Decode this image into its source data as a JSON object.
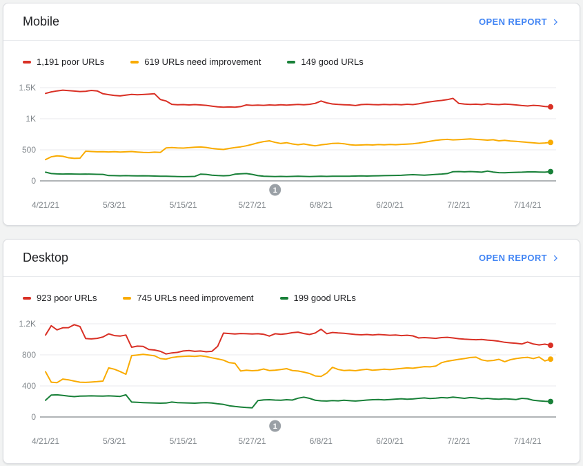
{
  "colors": {
    "poor": "#d93025",
    "needs_improvement": "#f9ab00",
    "good": "#188038",
    "link": "#4285f4",
    "axis_label": "#80868b",
    "gridline": "#e8eaed",
    "axis_line": "#80868b",
    "annotation_badge": "#9aa0a6",
    "card_title": "#202124"
  },
  "cards": [
    {
      "title": "Mobile",
      "open_report_label": "OPEN REPORT",
      "legend": [
        {
          "label": "1,191 poor URLs",
          "color": "#d93025"
        },
        {
          "label": "619 URLs need improvement",
          "color": "#f9ab00"
        },
        {
          "label": "149 good URLs",
          "color": "#188038"
        }
      ]
    },
    {
      "title": "Desktop",
      "open_report_label": "OPEN REPORT",
      "legend": [
        {
          "label": "923 poor URLs",
          "color": "#d93025"
        },
        {
          "label": "745 URLs need improvement",
          "color": "#f9ab00"
        },
        {
          "label": "199 good URLs",
          "color": "#188038"
        }
      ]
    }
  ],
  "chart_data": [
    {
      "type": "line",
      "device": "Mobile",
      "ylim": [
        0,
        1500
      ],
      "y_tick_labels": [
        "1.5K",
        "1K",
        "500",
        "0"
      ],
      "x_tick_labels": [
        "4/21/21",
        "5/3/21",
        "5/15/21",
        "5/27/21",
        "6/8/21",
        "6/20/21",
        "7/2/21",
        "7/14/21"
      ],
      "x_tick_days": [
        0,
        12,
        24,
        36,
        48,
        60,
        72,
        84
      ],
      "total_days": 88,
      "grid": true,
      "legend_position": "top",
      "annotation": {
        "label": "1",
        "day": 40
      },
      "series": [
        {
          "name": "poor URLs",
          "current": 1191,
          "color": "#d93025",
          "values": [
            1408,
            1432,
            1448,
            1460,
            1452,
            1445,
            1438,
            1442,
            1456,
            1448,
            1402,
            1388,
            1375,
            1368,
            1380,
            1392,
            1385,
            1390,
            1395,
            1402,
            1310,
            1285,
            1232,
            1225,
            1228,
            1222,
            1228,
            1222,
            1215,
            1202,
            1192,
            1185,
            1190,
            1186,
            1196,
            1222,
            1215,
            1220,
            1216,
            1222,
            1218,
            1224,
            1220,
            1226,
            1230,
            1226,
            1232,
            1248,
            1285,
            1255,
            1238,
            1230,
            1226,
            1222,
            1212,
            1228,
            1232,
            1228,
            1226,
            1230,
            1227,
            1231,
            1226,
            1233,
            1228,
            1240,
            1258,
            1272,
            1284,
            1295,
            1308,
            1328,
            1248,
            1236,
            1230,
            1234,
            1228,
            1240,
            1232,
            1228,
            1236,
            1230,
            1222,
            1212,
            1205,
            1215,
            1210,
            1198,
            1191
          ]
        },
        {
          "name": "URLs need improvement",
          "current": 619,
          "color": "#f9ab00",
          "values": [
            342,
            388,
            402,
            396,
            372,
            362,
            366,
            478,
            472,
            468,
            470,
            466,
            470,
            465,
            468,
            472,
            465,
            458,
            455,
            462,
            458,
            530,
            535,
            530,
            528,
            534,
            542,
            546,
            538,
            522,
            512,
            506,
            522,
            535,
            548,
            565,
            588,
            612,
            632,
            645,
            620,
            602,
            615,
            595,
            582,
            595,
            578,
            565,
            580,
            590,
            602,
            606,
            598,
            582,
            574,
            578,
            582,
            578,
            584,
            580,
            586,
            582,
            588,
            592,
            598,
            608,
            622,
            638,
            652,
            662,
            668,
            660,
            664,
            670,
            674,
            668,
            662,
            656,
            662,
            645,
            652,
            642,
            635,
            628,
            620,
            612,
            605,
            610,
            619
          ]
        },
        {
          "name": "good URLs",
          "current": 149,
          "color": "#188038",
          "values": [
            140,
            118,
            112,
            110,
            112,
            110,
            108,
            110,
            108,
            106,
            104,
            86,
            84,
            82,
            84,
            82,
            80,
            82,
            80,
            78,
            76,
            74,
            72,
            70,
            68,
            70,
            72,
            108,
            104,
            92,
            86,
            82,
            86,
            108,
            114,
            118,
            104,
            84,
            76,
            72,
            70,
            72,
            70,
            72,
            74,
            72,
            70,
            72,
            74,
            72,
            74,
            76,
            74,
            76,
            78,
            80,
            78,
            80,
            82,
            84,
            86,
            88,
            90,
            95,
            100,
            95,
            92,
            98,
            104,
            110,
            118,
            148,
            150,
            146,
            150,
            145,
            140,
            158,
            142,
            132,
            130,
            134,
            138,
            140,
            144,
            146,
            142,
            140,
            149
          ]
        }
      ]
    },
    {
      "type": "line",
      "device": "Desktop",
      "ylim": [
        0,
        1200
      ],
      "y_tick_labels": [
        "1.2K",
        "800",
        "400",
        "0"
      ],
      "x_tick_labels": [
        "4/21/21",
        "5/3/21",
        "5/15/21",
        "5/27/21",
        "6/8/21",
        "6/20/21",
        "7/2/21",
        "7/14/21"
      ],
      "x_tick_days": [
        0,
        12,
        24,
        36,
        48,
        60,
        72,
        84
      ],
      "total_days": 88,
      "grid": true,
      "legend_position": "top",
      "annotation": {
        "label": "1",
        "day": 40
      },
      "series": [
        {
          "name": "poor URLs",
          "current": 923,
          "color": "#d93025",
          "values": [
            1055,
            1175,
            1122,
            1148,
            1150,
            1188,
            1165,
            1010,
            1005,
            1012,
            1030,
            1070,
            1048,
            1042,
            1055,
            898,
            912,
            908,
            868,
            862,
            845,
            812,
            825,
            832,
            850,
            855,
            845,
            850,
            840,
            845,
            910,
            1080,
            1075,
            1068,
            1075,
            1072,
            1068,
            1072,
            1065,
            1042,
            1072,
            1065,
            1072,
            1085,
            1092,
            1075,
            1062,
            1082,
            1130,
            1072,
            1088,
            1082,
            1078,
            1070,
            1062,
            1058,
            1062,
            1055,
            1062,
            1058,
            1052,
            1056,
            1048,
            1052,
            1044,
            1018,
            1022,
            1018,
            1012,
            1022,
            1026,
            1018,
            1008,
            1002,
            998,
            995,
            998,
            990,
            985,
            975,
            962,
            955,
            948,
            940,
            965,
            940,
            928,
            938,
            923
          ]
        },
        {
          "name": "URLs need improvement",
          "current": 745,
          "color": "#f9ab00",
          "values": [
            582,
            448,
            442,
            488,
            478,
            462,
            448,
            445,
            450,
            455,
            462,
            632,
            615,
            585,
            550,
            790,
            798,
            806,
            798,
            788,
            752,
            745,
            765,
            775,
            780,
            785,
            780,
            788,
            778,
            762,
            748,
            732,
            700,
            692,
            592,
            602,
            596,
            600,
            618,
            598,
            602,
            612,
            622,
            598,
            592,
            578,
            560,
            528,
            522,
            565,
            640,
            612,
            598,
            602,
            596,
            606,
            614,
            602,
            608,
            615,
            610,
            618,
            625,
            632,
            628,
            638,
            648,
            645,
            655,
            700,
            718,
            730,
            742,
            752,
            765,
            770,
            735,
            722,
            728,
            742,
            712,
            738,
            752,
            762,
            768,
            752,
            772,
            722,
            745
          ]
        },
        {
          "name": "good URLs",
          "current": 199,
          "color": "#188038",
          "values": [
            215,
            282,
            285,
            278,
            268,
            262,
            268,
            270,
            272,
            270,
            268,
            272,
            268,
            265,
            285,
            192,
            188,
            185,
            182,
            180,
            178,
            180,
            192,
            185,
            182,
            180,
            178,
            182,
            185,
            180,
            170,
            162,
            145,
            135,
            128,
            122,
            118,
            212,
            220,
            222,
            218,
            215,
            222,
            218,
            242,
            255,
            240,
            215,
            208,
            205,
            212,
            208,
            215,
            210,
            205,
            212,
            218,
            222,
            225,
            220,
            225,
            230,
            235,
            228,
            232,
            240,
            245,
            238,
            242,
            250,
            245,
            255,
            248,
            240,
            250,
            245,
            235,
            240,
            232,
            228,
            235,
            230,
            225,
            240,
            235,
            215,
            208,
            202,
            199
          ]
        }
      ]
    }
  ]
}
